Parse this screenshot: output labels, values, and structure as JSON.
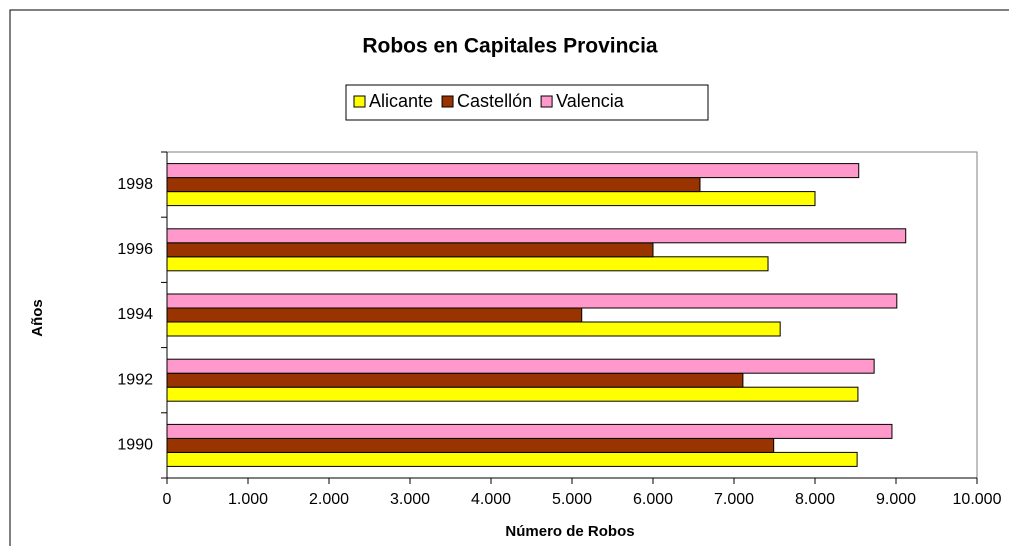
{
  "chart_data": {
    "type": "bar",
    "orientation": "horizontal",
    "title": "Robos en Capitales Provincia",
    "x_label": "Número de Robos",
    "y_label": "Años",
    "categories": [
      "1990",
      "1992",
      "1994",
      "1996",
      "1998"
    ],
    "series": [
      {
        "name": "Alicante",
        "color": "#ffff00",
        "values": [
          8520,
          8530,
          7570,
          7420,
          8000
        ]
      },
      {
        "name": "Castellón",
        "color": "#993300",
        "values": [
          7490,
          7110,
          5120,
          6000,
          6580
        ]
      },
      {
        "name": "Valencia",
        "color": "#ff99cc",
        "values": [
          8950,
          8730,
          9010,
          9120,
          8540
        ]
      }
    ],
    "xlim": [
      0,
      10000
    ],
    "xticks": [
      0,
      {
        "value": 1000,
        "label": "1.000"
      },
      {
        "value": 2000,
        "label": "2.000"
      },
      {
        "value": 3000,
        "label": "3.000"
      },
      {
        "value": 4000,
        "label": "4.000"
      },
      {
        "value": 5000,
        "label": "5.000"
      },
      {
        "value": 6000,
        "label": "6.000"
      },
      {
        "value": 7000,
        "label": "7.000"
      },
      {
        "value": 8000,
        "label": "8.000"
      },
      {
        "value": 9000,
        "label": "9.000"
      },
      {
        "value": 10000,
        "label": "10.000"
      }
    ],
    "grid": false,
    "legend": "top"
  }
}
